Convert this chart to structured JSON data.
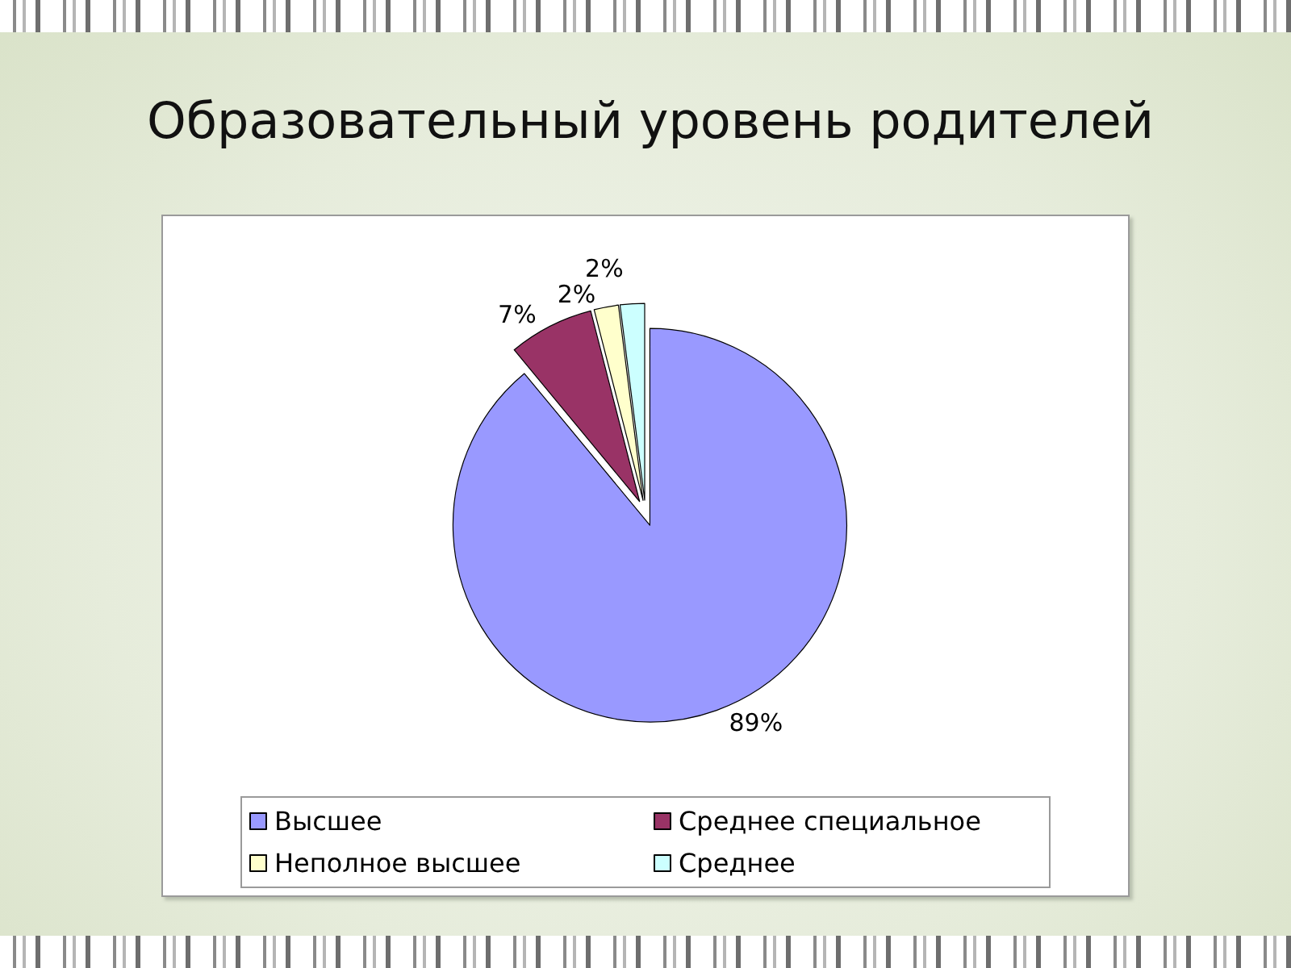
{
  "chart_data": {
    "type": "pie",
    "title": "Образовательный уровень родителей",
    "categories": [
      "Высшее",
      "Среднее специальное",
      "Неполное высшее",
      "Среднее"
    ],
    "values": [
      89,
      7,
      2,
      2
    ],
    "colors": [
      "#9999ff",
      "#993366",
      "#ffffcc",
      "#ccffff"
    ],
    "value_labels": [
      "89%",
      "7%",
      "2%",
      "2%"
    ],
    "legend": "bottom"
  }
}
